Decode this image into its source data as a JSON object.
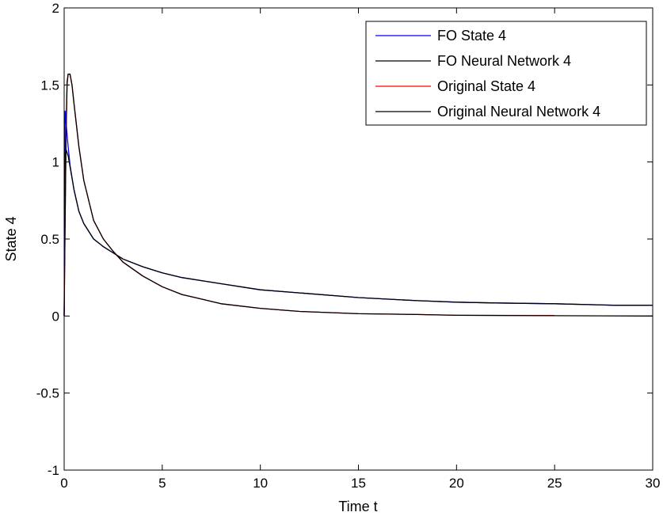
{
  "chart_data": {
    "type": "line",
    "title": "",
    "xlabel": "Time t",
    "ylabel": "State 4",
    "xlim": [
      0,
      30
    ],
    "ylim": [
      -1,
      2
    ],
    "xticks": [
      0,
      5,
      10,
      15,
      20,
      25,
      30
    ],
    "yticks": [
      -1,
      -0.5,
      0,
      0.5,
      1,
      1.5,
      2
    ],
    "xtick_labels": [
      "0",
      "5",
      "10",
      "15",
      "20",
      "25",
      "30"
    ],
    "ytick_labels": [
      "-1",
      "-0.5",
      "0",
      "0.5",
      "1",
      "1.5",
      "2"
    ],
    "grid": false,
    "legend_position": "top-right",
    "series": [
      {
        "name": "FO State 4",
        "color": "#0000ff",
        "x": [
          0,
          0.05,
          0.1,
          0.2,
          0.3,
          0.5,
          0.75,
          1,
          1.5,
          2,
          2.5,
          3,
          4,
          5,
          6,
          7,
          8,
          10,
          12,
          15,
          18,
          20,
          22,
          25,
          28,
          30
        ],
        "y": [
          0,
          1.33,
          1.25,
          1.1,
          0.98,
          0.82,
          0.68,
          0.6,
          0.5,
          0.45,
          0.41,
          0.37,
          0.32,
          0.28,
          0.25,
          0.23,
          0.21,
          0.17,
          0.15,
          0.12,
          0.1,
          0.09,
          0.085,
          0.08,
          0.07,
          0.07
        ]
      },
      {
        "name": "FO Neural Network 4",
        "color": "#000000",
        "x": [
          0,
          0.05,
          0.1,
          0.2,
          0.3,
          0.5,
          0.75,
          1,
          1.5,
          2,
          2.5,
          3,
          4,
          5,
          6,
          7,
          8,
          10,
          12,
          15,
          18,
          20,
          22,
          25,
          28,
          30
        ],
        "y": [
          0,
          1.05,
          1.08,
          1.04,
          0.97,
          0.82,
          0.68,
          0.6,
          0.5,
          0.45,
          0.41,
          0.37,
          0.32,
          0.28,
          0.25,
          0.23,
          0.21,
          0.17,
          0.15,
          0.12,
          0.1,
          0.09,
          0.085,
          0.08,
          0.07,
          0.07
        ]
      },
      {
        "name": "Original State 4",
        "color": "#ff0000",
        "x": [
          0,
          0.05,
          0.1,
          0.15,
          0.2,
          0.3,
          0.4,
          0.5,
          0.75,
          1,
          1.5,
          2,
          2.5,
          3,
          4,
          5,
          6,
          7,
          8,
          10,
          12,
          15,
          18,
          20,
          25
        ],
        "y": [
          0,
          0.6,
          1.2,
          1.5,
          1.57,
          1.57,
          1.5,
          1.38,
          1.1,
          0.88,
          0.62,
          0.5,
          0.42,
          0.35,
          0.26,
          0.19,
          0.14,
          0.11,
          0.08,
          0.05,
          0.03,
          0.015,
          0.01,
          0.005,
          0.003
        ]
      },
      {
        "name": "Original Neural Network 4",
        "color": "#000000",
        "x": [
          0,
          0.05,
          0.1,
          0.15,
          0.2,
          0.3,
          0.4,
          0.5,
          0.75,
          1,
          1.5,
          2,
          2.5,
          3,
          4,
          5,
          6,
          7,
          8,
          10,
          12,
          15,
          18,
          20,
          25,
          30
        ],
        "y": [
          0,
          0.62,
          1.22,
          1.52,
          1.57,
          1.57,
          1.5,
          1.38,
          1.1,
          0.88,
          0.62,
          0.5,
          0.42,
          0.35,
          0.26,
          0.19,
          0.14,
          0.11,
          0.08,
          0.05,
          0.03,
          0.015,
          0.01,
          0.005,
          0.002,
          0.0
        ]
      }
    ]
  }
}
